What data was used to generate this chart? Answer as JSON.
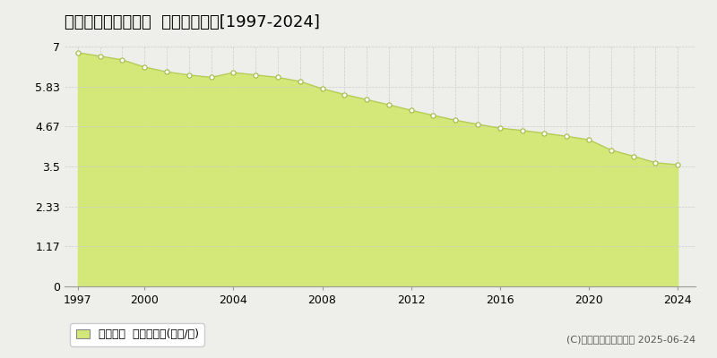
{
  "title": "西諸県郡高原町西麓  基準地価推移[1997-2024]",
  "years": [
    1997,
    1998,
    1999,
    2000,
    2001,
    2002,
    2003,
    2004,
    2005,
    2006,
    2007,
    2008,
    2009,
    2010,
    2011,
    2012,
    2013,
    2014,
    2015,
    2016,
    2017,
    2018,
    2019,
    2020,
    2021,
    2022,
    2023,
    2024
  ],
  "values": [
    6.82,
    6.72,
    6.61,
    6.4,
    6.26,
    6.17,
    6.1,
    6.24,
    6.17,
    6.1,
    5.98,
    5.77,
    5.6,
    5.45,
    5.3,
    5.14,
    4.99,
    4.85,
    4.73,
    4.62,
    4.55,
    4.47,
    4.38,
    4.28,
    3.98,
    3.8,
    3.61,
    3.55
  ],
  "ylim": [
    0,
    7
  ],
  "yticks": [
    0,
    1.17,
    2.33,
    3.5,
    4.67,
    5.83,
    7
  ],
  "ytick_labels": [
    "0",
    "1.17",
    "2.33",
    "3.5",
    "4.67",
    "5.83",
    "7"
  ],
  "xticks": [
    1997,
    2000,
    2004,
    2008,
    2012,
    2016,
    2020,
    2024
  ],
  "line_color": "#b5cc5a",
  "fill_color": "#d4e87a",
  "marker_facecolor": "#ffffff",
  "marker_edge_color": "#a0bb40",
  "bg_color": "#eeeeea",
  "plot_bg_color": "#eeeeea",
  "grid_color": "#cccccc",
  "legend_label": "基準地価  平均坪単価(万円/坪)",
  "copyright_text": "(C)土地価格ドットコム 2025-06-24",
  "title_fontsize": 13,
  "legend_fontsize": 9,
  "tick_fontsize": 9
}
